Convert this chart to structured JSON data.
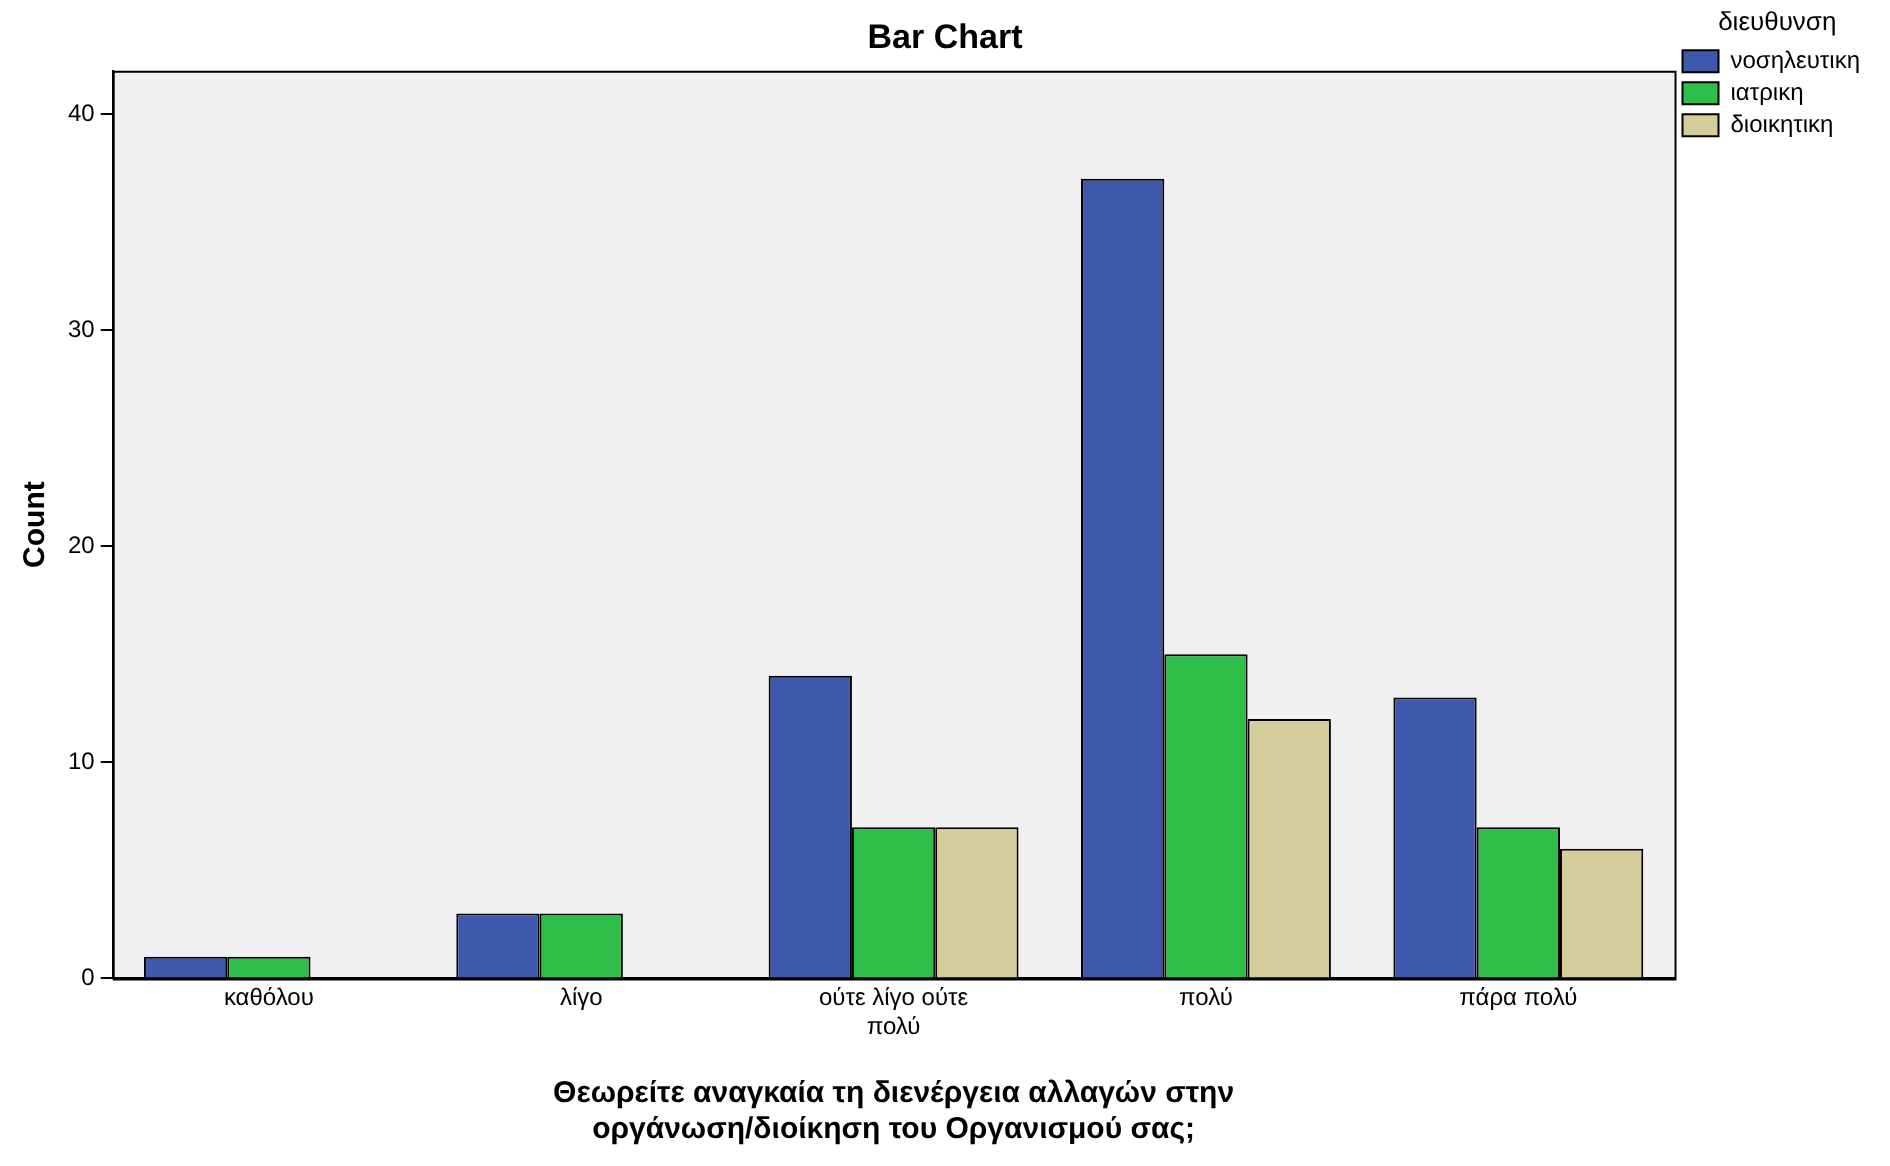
{
  "chart_data": {
    "type": "bar",
    "title": "Bar Chart",
    "xlabel": "Θεωρείτε αναγκαία τη διενέργεια αλλαγών στην οργάνωση/διοίκηση του Οργανισμού σας;",
    "ylabel": "Count",
    "legend_title": "διευθυνση",
    "legend": "top right",
    "categories": [
      "καθόλου",
      "λίγο",
      "ούτε λίγο ούτε πολύ",
      "πολύ",
      "πάρα πολύ"
    ],
    "series": [
      {
        "name": "νοσηλευτικη",
        "color": "#3e58ac",
        "values": [
          1,
          3,
          14,
          37,
          13
        ]
      },
      {
        "name": "ιατρικη",
        "color": "#2fbe4a",
        "values": [
          1,
          3,
          7,
          15,
          7
        ]
      },
      {
        "name": "διοικητικη",
        "color": "#d4cc9a",
        "values": [
          null,
          null,
          7,
          12,
          6
        ]
      }
    ],
    "ylim": [
      0,
      42
    ],
    "yticks": [
      0,
      10,
      20,
      30,
      40
    ],
    "grid": false
  }
}
